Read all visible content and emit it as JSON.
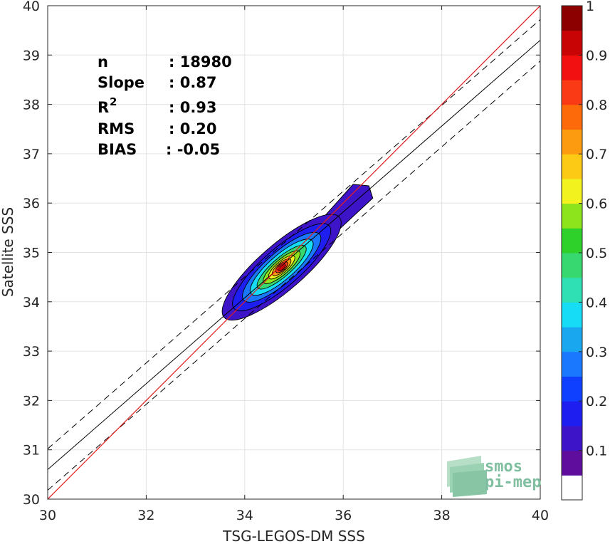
{
  "chart_data": {
    "type": "scatter",
    "subtype": "density-contour",
    "xlabel": "TSG-LEGOS-DM SSS",
    "ylabel": "Satellite SSS",
    "xlim": [
      30,
      40
    ],
    "ylim": [
      30,
      40
    ],
    "xticks": [
      30,
      32,
      34,
      36,
      38,
      40
    ],
    "yticks": [
      30,
      31,
      32,
      33,
      34,
      35,
      36,
      37,
      38,
      39,
      40
    ],
    "grid": true,
    "stats": [
      {
        "label": "n",
        "value": ": 18980"
      },
      {
        "label": "Slope",
        "value": ": 0.87"
      },
      {
        "label": "R",
        "sup": "2",
        "value": ": 0.93"
      },
      {
        "label": "RMS",
        "value": ": 0.20"
      },
      {
        "label": "BIAS",
        "value": ": -0.05"
      }
    ],
    "lines": {
      "identity": {
        "color": "#e41a1c",
        "points": [
          [
            30,
            30
          ],
          [
            40,
            40
          ]
        ]
      },
      "regression": {
        "slope": 0.87,
        "intercept": 4.5,
        "color": "#000000"
      },
      "regression_offset": 0.42
    },
    "density_centroid": {
      "x": 34.75,
      "y": 34.7
    },
    "density_ridge": [
      [
        33.8,
        34.0
      ],
      [
        36.5,
        36.25
      ]
    ],
    "colorbar": {
      "range": [
        0,
        1
      ],
      "ticks": [
        0.1,
        0.2,
        0.3,
        0.4,
        0.5,
        0.6,
        0.7,
        0.8,
        0.9,
        1
      ],
      "tick_labels": [
        "0.1",
        "0.2",
        "0.3",
        "0.4",
        "0.5",
        "0.6",
        "0.7",
        "0.8",
        "0.9",
        "1"
      ],
      "levels": [
        "#ffffff",
        "#5e0d9c",
        "#3d14c8",
        "#1e1ef0",
        "#1040ff",
        "#1a78ff",
        "#19a8f0",
        "#16dcf5",
        "#2ee0b4",
        "#38d870",
        "#2ed02a",
        "#8ee41c",
        "#f2f21e",
        "#fcca14",
        "#fc9a10",
        "#fc6a0a",
        "#fa3a14",
        "#f21010",
        "#c80404",
        "#8c0000"
      ]
    },
    "contours": [
      {
        "level": 0.05,
        "color": "#3d14c8",
        "w": 1.55,
        "h": 0.46
      },
      {
        "level": 0.15,
        "color": "#1e1ef0",
        "w": 1.28,
        "h": 0.38
      },
      {
        "level": 0.2,
        "color": "#1a78ff",
        "w": 1.02,
        "h": 0.31
      },
      {
        "level": 0.3,
        "color": "#16dcf5",
        "w": 0.82,
        "h": 0.25
      },
      {
        "level": 0.45,
        "color": "#38d870",
        "w": 0.64,
        "h": 0.19
      },
      {
        "level": 0.55,
        "color": "#8ee41c",
        "w": 0.48,
        "h": 0.15
      },
      {
        "level": 0.65,
        "color": "#f2f21e",
        "w": 0.34,
        "h": 0.115
      },
      {
        "level": 0.75,
        "color": "#fc9a10",
        "w": 0.24,
        "h": 0.09
      },
      {
        "level": 0.85,
        "color": "#fa3a14",
        "w": 0.15,
        "h": 0.07
      },
      {
        "level": 0.95,
        "color": "#c80404",
        "w": 0.09,
        "h": 0.05
      }
    ]
  },
  "logo": {
    "line1": "smos",
    "line2": "pi-mep"
  }
}
